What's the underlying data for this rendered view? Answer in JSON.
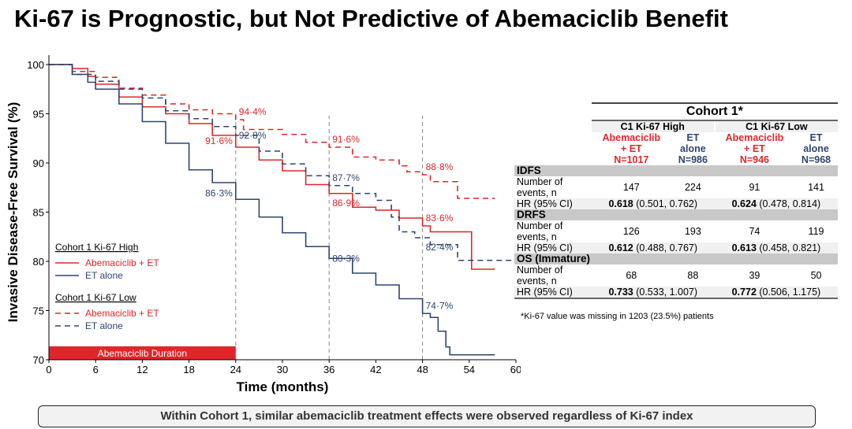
{
  "title": "Ki-67 is Prognostic, but Not Predictive of Abemaciclib Benefit",
  "banner": "Within Cohort 1, similar abemaciclib treatment effects were observed regardless of Ki-67 index",
  "chart_data": {
    "type": "line",
    "step": true,
    "xlabel": "Time (months)",
    "ylabel": "Invasive Disease-Free Survival (%)",
    "xlim": [
      0,
      60
    ],
    "ylim": [
      70,
      100
    ],
    "xticks": [
      0,
      6,
      12,
      18,
      24,
      30,
      36,
      42,
      48,
      54,
      60
    ],
    "yticks": [
      70,
      75,
      80,
      85,
      90,
      95,
      100
    ],
    "reference_lines_x": [
      24,
      36,
      48
    ],
    "duration_bar": {
      "label": "Abemaciclib Duration",
      "from": 0,
      "to": 24,
      "color": "#e0262a"
    },
    "legend": {
      "placement": "bottom-left",
      "groups": [
        {
          "title": "Cohort 1 Ki-67 High",
          "items": [
            "Abemaciclib + ET",
            "ET alone"
          ]
        },
        {
          "title": "Cohort 1 Ki-67 Low",
          "items": [
            "Abemaciclib + ET",
            "ET alone"
          ]
        }
      ]
    },
    "series": [
      {
        "name": "Abemaciclib + ET",
        "group": "Cohort 1 Ki-67 High",
        "color": "#e0262a",
        "dash": false,
        "x": [
          0,
          3,
          5,
          6,
          9,
          12,
          15,
          18,
          21,
          24,
          27,
          30,
          33,
          36,
          39,
          42,
          45,
          48,
          49,
          54.3,
          54.3,
          57.3
        ],
        "y": [
          100,
          99.6,
          98.8,
          98,
          96.7,
          95.7,
          95,
          94,
          92.8,
          91.6,
          90.3,
          89.2,
          87.8,
          86.9,
          85.5,
          85.2,
          84.4,
          83.6,
          83,
          83,
          79.2,
          79.2
        ]
      },
      {
        "name": "ET alone",
        "group": "Cohort 1 Ki-67 High",
        "color": "#2e4570",
        "dash": false,
        "x": [
          0,
          3,
          5,
          6,
          9,
          12,
          15,
          18,
          21,
          24,
          27,
          30,
          33,
          36,
          39,
          42,
          45,
          48,
          49,
          50,
          51,
          51.5,
          57.3
        ],
        "y": [
          100,
          99,
          98.2,
          97.5,
          96,
          94.2,
          92,
          89.3,
          88,
          86.3,
          84.5,
          82.9,
          81.5,
          80.3,
          78.8,
          77.6,
          76.2,
          74.7,
          74.3,
          72.9,
          71.3,
          70.5,
          70.5
        ]
      },
      {
        "name": "Abemaciclib + ET",
        "group": "Cohort 1 Ki-67 Low",
        "color": "#e0262a",
        "dash": true,
        "x": [
          0,
          3,
          6,
          9,
          12,
          15,
          18,
          21,
          24,
          25,
          30,
          33,
          36,
          39,
          42,
          45,
          46,
          48,
          49,
          52.5,
          52.5,
          57.3
        ],
        "y": [
          100,
          99.3,
          98.7,
          97.6,
          96.9,
          96,
          95.4,
          95,
          94.4,
          93.4,
          92.9,
          92.1,
          91.6,
          90.6,
          90.3,
          89.7,
          89.1,
          88.8,
          88.1,
          88.1,
          86.4,
          86.4
        ]
      },
      {
        "name": "ET alone",
        "group": "Cohort 1 Ki-67 Low",
        "color": "#2e4570",
        "dash": true,
        "x": [
          0,
          3,
          6,
          9,
          12,
          15,
          18,
          21,
          24,
          27,
          30,
          33,
          36,
          39,
          42,
          44,
          45,
          47,
          49,
          52.5,
          52.5,
          60
        ],
        "y": [
          100,
          99,
          98.3,
          97.5,
          96.6,
          95.3,
          94.5,
          93.7,
          92.8,
          91.2,
          89.9,
          88.7,
          87.7,
          86.9,
          86.2,
          84.5,
          83,
          82.4,
          81.7,
          81.6,
          80.1,
          80.1
        ]
      }
    ],
    "annotations": [
      {
        "text": "94·4%",
        "x": 24,
        "y": 94.4,
        "color": "#e0262a",
        "side": "right-up"
      },
      {
        "text": "92·8%",
        "x": 24,
        "y": 92.8,
        "color": "#2e4570",
        "side": "right"
      },
      {
        "text": "91·6%",
        "x": 24,
        "y": 91.6,
        "color": "#e0262a",
        "side": "left"
      },
      {
        "text": "86·3%",
        "x": 24,
        "y": 86.3,
        "color": "#2e4570",
        "side": "left"
      },
      {
        "text": "91·6%",
        "x": 36,
        "y": 91.6,
        "color": "#e0262a",
        "side": "right-up"
      },
      {
        "text": "87·7%",
        "x": 36,
        "y": 87.7,
        "color": "#2e4570",
        "side": "right-up"
      },
      {
        "text": "86·9%",
        "x": 36,
        "y": 86.9,
        "color": "#e0262a",
        "side": "right-down"
      },
      {
        "text": "80·3%",
        "x": 36,
        "y": 80.3,
        "color": "#2e4570",
        "side": "right"
      },
      {
        "text": "88·8%",
        "x": 48,
        "y": 88.8,
        "color": "#e0262a",
        "side": "right-up"
      },
      {
        "text": "83·6%",
        "x": 48,
        "y": 83.6,
        "color": "#e0262a",
        "side": "right-up"
      },
      {
        "text": "82·4%",
        "x": 48,
        "y": 82.4,
        "color": "#2e4570",
        "side": "right-down"
      },
      {
        "text": "74·7%",
        "x": 48,
        "y": 74.7,
        "color": "#2e4570",
        "side": "right-up"
      }
    ]
  },
  "table": {
    "title": "Cohort 1*",
    "groups": [
      "C1 Ki-67 High",
      "C1 Ki-67 Low"
    ],
    "arms": [
      [
        "Abemaciclib",
        "+ ET",
        "N=1017"
      ],
      [
        "ET",
        "alone",
        "N=986"
      ],
      [
        "Abemaciclib",
        "+ ET",
        "N=946"
      ],
      [
        "ET",
        "alone",
        "N=968"
      ]
    ],
    "sections": [
      {
        "name": "IDFS",
        "events_label": [
          "Number of",
          "events, n"
        ],
        "events": [
          "147",
          "224",
          "91",
          "141"
        ],
        "hr_label": "HR (95% CI)",
        "hr": [
          [
            "0.618",
            " (0.501, 0.762)"
          ],
          [
            "0.624",
            " (0.478, 0.814)"
          ]
        ]
      },
      {
        "name": "DRFS",
        "events_label": [
          "Number of",
          "events, n"
        ],
        "events": [
          "126",
          "193",
          "74",
          "119"
        ],
        "hr_label": "HR (95% CI)",
        "hr": [
          [
            "0.612",
            " (0.488, 0.767)"
          ],
          [
            "0.613",
            " (0.458, 0.821)"
          ]
        ]
      },
      {
        "name": "OS (Immature)",
        "events_label": [
          "Number of",
          "events, n"
        ],
        "events": [
          "68",
          "88",
          "39",
          "50"
        ],
        "hr_label": "HR (95% CI)",
        "hr": [
          [
            "0.733",
            " (0.533, 1.007)"
          ],
          [
            "0.772",
            " (0.506, 1.175)"
          ]
        ]
      }
    ],
    "footnote": "*Ki-67 value was missing in 1203 (23.5%) patients"
  }
}
